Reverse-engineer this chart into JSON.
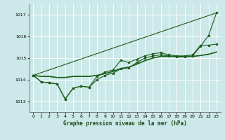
{
  "background_color": "#cce8e8",
  "grid_color": "#ffffff",
  "line_color": "#1a5c1a",
  "title": "Graphe pression niveau de la mer (hPa)",
  "xlim": [
    -0.5,
    23.5
  ],
  "ylim": [
    1012.5,
    1017.5
  ],
  "yticks": [
    1013,
    1014,
    1015,
    1016,
    1017
  ],
  "xticks": [
    0,
    1,
    2,
    3,
    4,
    5,
    6,
    7,
    8,
    9,
    10,
    11,
    12,
    13,
    14,
    15,
    16,
    17,
    18,
    19,
    20,
    21,
    22,
    23
  ],
  "series": [
    {
      "x": [
        0,
        1,
        2,
        3,
        4,
        5,
        6,
        7,
        8,
        9,
        10,
        11,
        12,
        13,
        14,
        15,
        16,
        17,
        18,
        19,
        20,
        21,
        22,
        23
      ],
      "y": [
        1014.2,
        1013.9,
        1013.85,
        1013.8,
        1013.1,
        1013.6,
        1013.7,
        1013.65,
        1014.0,
        1014.2,
        1014.3,
        1014.5,
        1014.55,
        1014.8,
        1015.0,
        1015.1,
        1015.15,
        1015.1,
        1015.05,
        1015.05,
        1015.1,
        1015.55,
        1016.05,
        1017.1
      ],
      "marker": "o",
      "markersize": 2.0,
      "linewidth": 0.8
    },
    {
      "x": [
        0,
        1,
        2,
        3,
        4,
        5,
        6,
        7,
        8,
        9,
        10,
        11,
        12,
        13,
        14,
        15,
        16,
        17,
        18,
        19,
        20,
        21,
        22,
        23
      ],
      "y": [
        1014.2,
        1013.9,
        1013.85,
        1013.8,
        1013.1,
        1013.6,
        1013.7,
        1013.65,
        1014.15,
        1014.35,
        1014.45,
        1014.9,
        1014.8,
        1014.95,
        1015.1,
        1015.2,
        1015.25,
        1015.15,
        1015.1,
        1015.1,
        1015.15,
        1015.6,
        1015.6,
        1015.65
      ],
      "marker": "o",
      "markersize": 2.0,
      "linewidth": 0.8
    },
    {
      "x": [
        0,
        1,
        2,
        3,
        4,
        5,
        6,
        7,
        8,
        9,
        10,
        11,
        12,
        13,
        14,
        15,
        16,
        17,
        18,
        19,
        20,
        21,
        22,
        23
      ],
      "y": [
        1014.2,
        1014.15,
        1014.15,
        1014.1,
        1014.1,
        1014.15,
        1014.15,
        1014.15,
        1014.2,
        1014.28,
        1014.38,
        1014.52,
        1014.58,
        1014.72,
        1014.88,
        1015.0,
        1015.08,
        1015.08,
        1015.08,
        1015.08,
        1015.08,
        1015.12,
        1015.18,
        1015.28
      ],
      "marker": null,
      "linewidth": 1.2
    },
    {
      "x": [
        0,
        23
      ],
      "y": [
        1014.2,
        1017.1
      ],
      "marker": null,
      "linewidth": 0.8,
      "linestyle": "-"
    }
  ]
}
